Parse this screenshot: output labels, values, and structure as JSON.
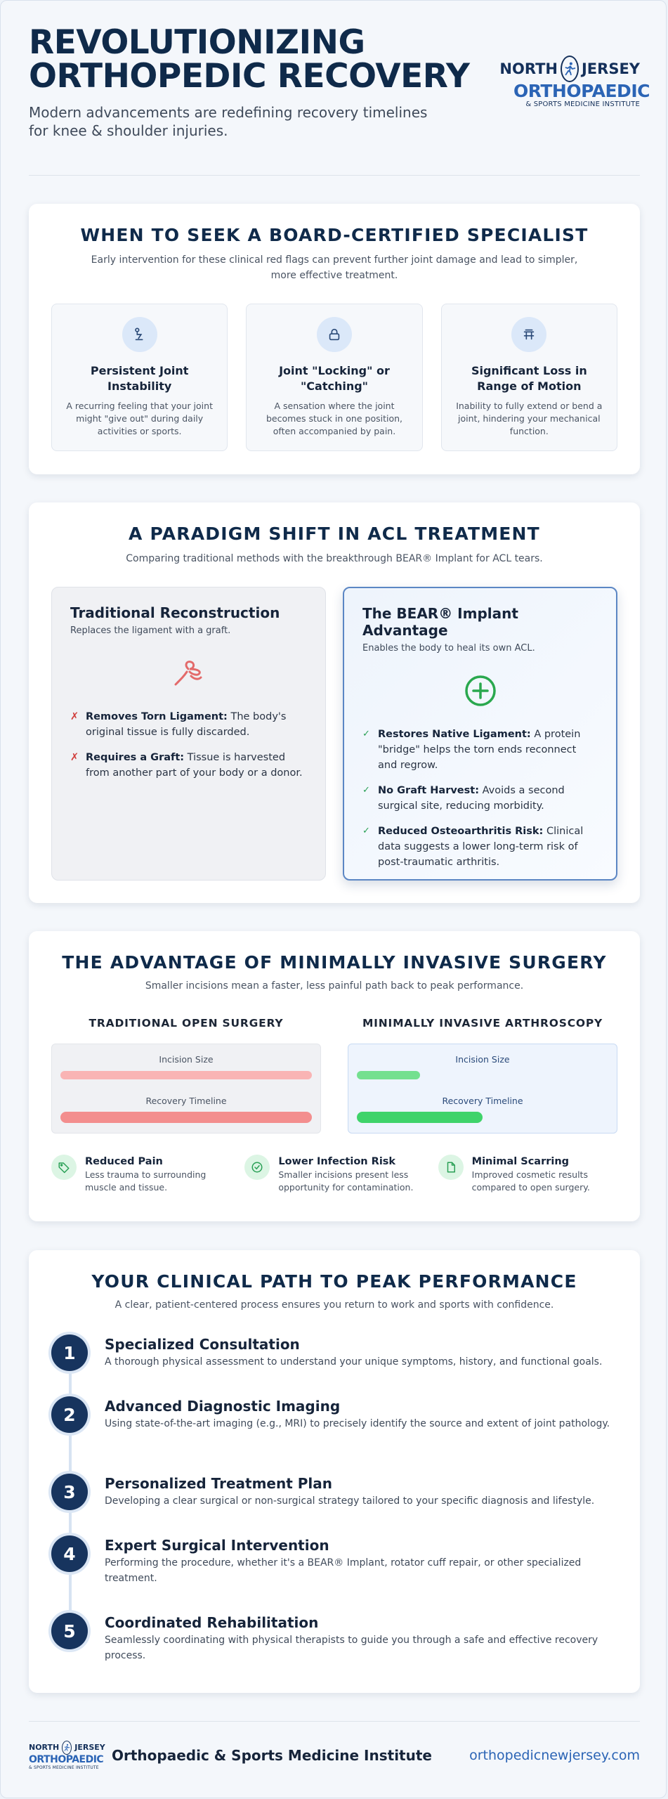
{
  "header": {
    "title_line1": "REVOLUTIONIZING",
    "title_line2": "ORTHOPEDIC RECOVERY",
    "subtitle": "Modern advancements are redefining recovery timelines for knee & shoulder injuries.",
    "logo": {
      "top_left": "NORTH",
      "top_right": "JERSEY",
      "main": "ORTHOPAEDIC",
      "tagline": "& SPORTS MEDICINE INSTITUTE"
    }
  },
  "specialist": {
    "title": "WHEN TO SEEK A BOARD-CERTIFIED SPECIALIST",
    "subtitle": "Early intervention for these clinical red flags can prevent further joint damage and lead to simpler, more effective treatment.",
    "flags": [
      {
        "icon": "instability-icon",
        "title": "Persistent Joint Instability",
        "desc": "A recurring feeling that your joint might \"give out\" during daily activities or sports."
      },
      {
        "icon": "lock-icon",
        "title": "Joint \"Locking\" or \"Catching\"",
        "desc": "A sensation where the joint becomes stuck in one position, often accompanied by pain."
      },
      {
        "icon": "range-icon",
        "title": "Significant Loss in Range of Motion",
        "desc": "Inability to fully extend or bend a joint, hindering your mechanical function."
      }
    ]
  },
  "acl": {
    "title": "A PARADIGM SHIFT IN ACL TREATMENT",
    "subtitle": "Comparing traditional methods with the breakthrough BEAR® Implant for ACL tears.",
    "traditional": {
      "title": "Traditional Reconstruction",
      "sub": "Replaces the ligament with a graft.",
      "items": [
        {
          "bold": "Removes Torn Ligament:",
          "text": " The body's original tissue is fully discarded."
        },
        {
          "bold": "Requires a Graft:",
          "text": " Tissue is harvested from another part of your body or a donor."
        }
      ]
    },
    "bear": {
      "title": "The BEAR® Implant Advantage",
      "sub": "Enables the body to heal its own ACL.",
      "items": [
        {
          "bold": "Restores Native Ligament:",
          "text": " A protein \"bridge\" helps the torn ends reconnect and regrow."
        },
        {
          "bold": "No Graft Harvest:",
          "text": " Avoids a second surgical site, reducing morbidity."
        },
        {
          "bold": "Reduced Osteoarthritis Risk:",
          "text": " Clinical data suggests a lower long-term risk of post-traumatic arthritis."
        }
      ]
    }
  },
  "mis": {
    "title": "THE ADVANTAGE OF MINIMALLY INVASIVE SURGERY",
    "subtitle": "Smaller incisions mean a faster, less painful path back to peak performance.",
    "open": {
      "heading": "TRADITIONAL OPEN SURGERY",
      "incision_label": "Incision Size",
      "recovery_label": "Recovery Timeline",
      "incision_level": 1.0,
      "recovery_level": 1.0,
      "color_incision": "#f9b4b4",
      "color_recovery": "#f38e8e"
    },
    "arthro": {
      "heading": "MINIMALLY INVASIVE ARTHROSCOPY",
      "incision_label": "Incision Size",
      "recovery_label": "Recovery Timeline",
      "incision_level": 0.25,
      "recovery_level": 0.5,
      "color_incision": "#74e08f",
      "color_recovery": "#3fd36a"
    },
    "benefits": [
      {
        "icon": "tag-icon",
        "title": "Reduced Pain",
        "desc": "Less trauma to surrounding muscle and tissue."
      },
      {
        "icon": "check-circle-icon",
        "title": "Lower Infection Risk",
        "desc": "Smaller incisions present less opportunity for contamination."
      },
      {
        "icon": "document-icon",
        "title": "Minimal Scarring",
        "desc": "Improved cosmetic results compared to open surgery."
      }
    ]
  },
  "path": {
    "title": "YOUR CLINICAL PATH TO PEAK PERFORMANCE",
    "subtitle": "A clear, patient-centered process ensures you return to work and sports with confidence.",
    "steps": [
      {
        "num": "1",
        "title": "Specialized Consultation",
        "desc": "A thorough physical assessment to understand your unique symptoms, history, and functional goals."
      },
      {
        "num": "2",
        "title": "Advanced Diagnostic Imaging",
        "desc": "Using state-of-the-art imaging (e.g., MRI) to precisely identify the source and extent of joint pathology."
      },
      {
        "num": "3",
        "title": "Personalized Treatment Plan",
        "desc": "Developing a clear surgical or non-surgical strategy tailored to your specific diagnosis and lifestyle."
      },
      {
        "num": "4",
        "title": "Expert Surgical Intervention",
        "desc": "Performing the procedure, whether it's a BEAR® Implant, rotator cuff repair, or other specialized treatment."
      },
      {
        "num": "5",
        "title": "Coordinated Rehabilitation",
        "desc": "Seamlessly coordinating with physical therapists to guide you through a safe and effective recovery process."
      }
    ]
  },
  "footer": {
    "name": "Orthopaedic & Sports Medicine Institute",
    "url": "orthopedicnewjersey.com"
  }
}
